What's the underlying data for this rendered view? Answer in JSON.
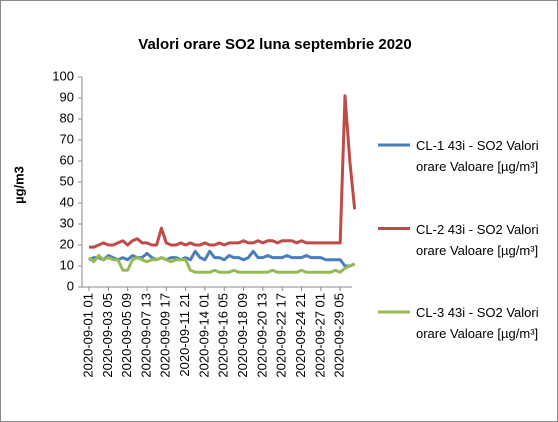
{
  "chart_data": {
    "type": "line",
    "title": "Valori orare SO2 luna septembrie 2020",
    "y_label": "µg/m3",
    "categories": [
      "2020-09-01 01",
      null,
      null,
      null,
      "2020-09-03 05",
      null,
      null,
      null,
      "2020-09-05 09",
      null,
      null,
      null,
      "2020-09-07 13",
      null,
      null,
      null,
      "2020-09-09 17",
      null,
      null,
      null,
      "2020-09-11 21",
      null,
      null,
      null,
      "2020-09-14 01",
      null,
      null,
      null,
      "2020-09-16 05",
      null,
      null,
      null,
      "2020-09-18 09",
      null,
      null,
      null,
      "2020-09-20 13",
      null,
      null,
      null,
      "2020-09-22 17",
      null,
      null,
      null,
      "2020-09-24 21",
      null,
      null,
      null,
      "2020-09-27 01",
      null,
      null,
      null,
      "2020-09-29 05",
      null,
      null,
      null
    ],
    "series": [
      {
        "name": "CL-1 43i - SO2 Valori orare Valoare [µg/m³]",
        "color": "#4a7ebb",
        "values": [
          13,
          14,
          14,
          13,
          15,
          14,
          13,
          14,
          13,
          15,
          14,
          14,
          16,
          14,
          13,
          14,
          13,
          14,
          14,
          13,
          14,
          13,
          17,
          14,
          13,
          17,
          14,
          14,
          13,
          15,
          14,
          14,
          13,
          14,
          17,
          14,
          14,
          15,
          14,
          14,
          14,
          15,
          14,
          14,
          14,
          15,
          14,
          14,
          14,
          13,
          13,
          13,
          13,
          10,
          10,
          11
        ]
      },
      {
        "name": "CL-2 43i - SO2 Valori orare Valoare [µg/m³]",
        "color": "#be4b48",
        "values": [
          19,
          19,
          20,
          21,
          20,
          20,
          21,
          22,
          20,
          22,
          23,
          21,
          21,
          20,
          20,
          28,
          21,
          20,
          20,
          21,
          20,
          21,
          20,
          20,
          21,
          20,
          20,
          21,
          20,
          21,
          21,
          21,
          22,
          21,
          21,
          22,
          21,
          22,
          22,
          21,
          22,
          22,
          22,
          21,
          22,
          21,
          21,
          21,
          21,
          21,
          21,
          21,
          21,
          91,
          60,
          37
        ]
      },
      {
        "name": "CL-3 43i - SO2 Valori orare Valoare [µg/m³]",
        "color": "#98b954",
        "values": [
          14,
          12,
          15,
          13,
          14,
          13,
          13,
          8,
          8,
          13,
          14,
          13,
          12,
          13,
          13,
          14,
          13,
          12,
          13,
          13,
          13,
          8,
          7,
          7,
          7,
          7,
          8,
          7,
          7,
          7,
          8,
          7,
          7,
          7,
          7,
          7,
          7,
          7,
          8,
          7,
          7,
          7,
          7,
          7,
          8,
          7,
          7,
          7,
          7,
          7,
          7,
          8,
          7,
          9,
          10,
          11
        ]
      }
    ],
    "ylim": [
      0,
      100
    ],
    "yticks": [
      0,
      10,
      20,
      30,
      40,
      50,
      60,
      70,
      80,
      90,
      100
    ],
    "grid": false,
    "legend": "right"
  }
}
